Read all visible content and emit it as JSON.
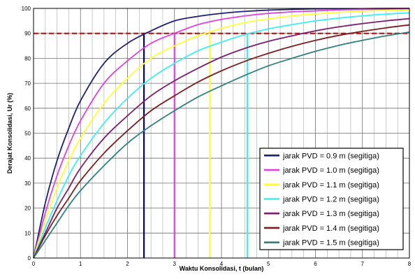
{
  "chart_data": {
    "type": "line",
    "title": "",
    "xlabel": "Waktu Konsolidasi, t (bulan)",
    "ylabel": "Derajat Konsolidasi, Ur (%)",
    "xlim": [
      0,
      8
    ],
    "ylim": [
      0,
      100
    ],
    "x_ticks": [
      "0",
      "1",
      "2",
      "3",
      "4",
      "5",
      "6",
      "7",
      "8"
    ],
    "y_ticks": [
      "0",
      "10",
      "20",
      "30",
      "40",
      "50",
      "60",
      "70",
      "80",
      "90",
      "100"
    ],
    "grid": true,
    "legend_position": "bottom-right",
    "x": [
      0,
      0.25,
      0.5,
      0.75,
      1,
      1.5,
      2,
      2.5,
      3,
      3.5,
      4,
      4.5,
      5,
      5.5,
      6,
      6.5,
      7,
      7.5,
      8
    ],
    "series": [
      {
        "name": "jarak PVD = 0.9 m (segitiga)",
        "color": "#1f1f78",
        "values": [
          0,
          22,
          39,
          52,
          63,
          78,
          86,
          91,
          95,
          96.8,
          98,
          98.8,
          99.3,
          99.6,
          99.8,
          99.9,
          99.9,
          100,
          100
        ]
      },
      {
        "name": "jarak PVD = 1.0 m (segitiga)",
        "color": "#e040e0",
        "values": [
          0,
          18,
          33,
          45,
          55,
          70,
          79,
          86,
          90,
          93.5,
          95.6,
          97,
          98,
          98.6,
          99,
          99.4,
          99.6,
          99.7,
          99.8
        ]
      },
      {
        "name": "jarak PVD = 1.1 m (segitiga)",
        "color": "#ffff33",
        "values": [
          0,
          15,
          28,
          39,
          48,
          62,
          72,
          80,
          85,
          89,
          92,
          94.3,
          95.8,
          97,
          97.8,
          98.4,
          98.9,
          99.2,
          99.4
        ]
      },
      {
        "name": "jarak PVD = 1.2 m (segitiga)",
        "color": "#3cf0f0",
        "values": [
          0,
          12,
          23,
          33,
          41,
          54,
          64,
          72,
          78,
          83,
          86.5,
          89.5,
          91.8,
          93.5,
          95,
          96.1,
          97,
          97.7,
          98.2
        ]
      },
      {
        "name": "jarak PVD = 1.3 m (segitiga)",
        "color": "#7a1f6e",
        "values": [
          0,
          10,
          20,
          28,
          36,
          48,
          57,
          65,
          71,
          76,
          80.5,
          84,
          86.8,
          89,
          91,
          92.6,
          93.9,
          95,
          95.9
        ]
      },
      {
        "name": "jarak PVD = 1.4 m (segitiga)",
        "color": "#7a1f1f",
        "values": [
          0,
          9,
          17,
          24,
          31,
          42,
          51,
          59,
          65,
          70.5,
          75,
          78.8,
          82,
          84.8,
          87.2,
          89.2,
          90.8,
          92.2,
          93.4
        ]
      },
      {
        "name": "jarak PVD = 1.5 m (segitiga)",
        "color": "#2f8080",
        "values": [
          0,
          7,
          14,
          21,
          27,
          37,
          46,
          53,
          59,
          64.5,
          69,
          73.2,
          77,
          80,
          82.8,
          85.2,
          87.2,
          89,
          90.5
        ]
      }
    ],
    "reference_lines": [
      {
        "axis": "y",
        "value": 90,
        "color": "#cc0000",
        "style": "dashed"
      },
      {
        "axis": "x",
        "value": 2.35,
        "color": "#000080",
        "style": "solid"
      },
      {
        "axis": "x",
        "value": 3.0,
        "color": "#e040e0",
        "style": "solid"
      },
      {
        "axis": "x",
        "value": 3.75,
        "color": "#ffff33",
        "style": "solid"
      },
      {
        "axis": "x",
        "value": 4.55,
        "color": "#3cf0f0",
        "style": "solid"
      }
    ]
  }
}
